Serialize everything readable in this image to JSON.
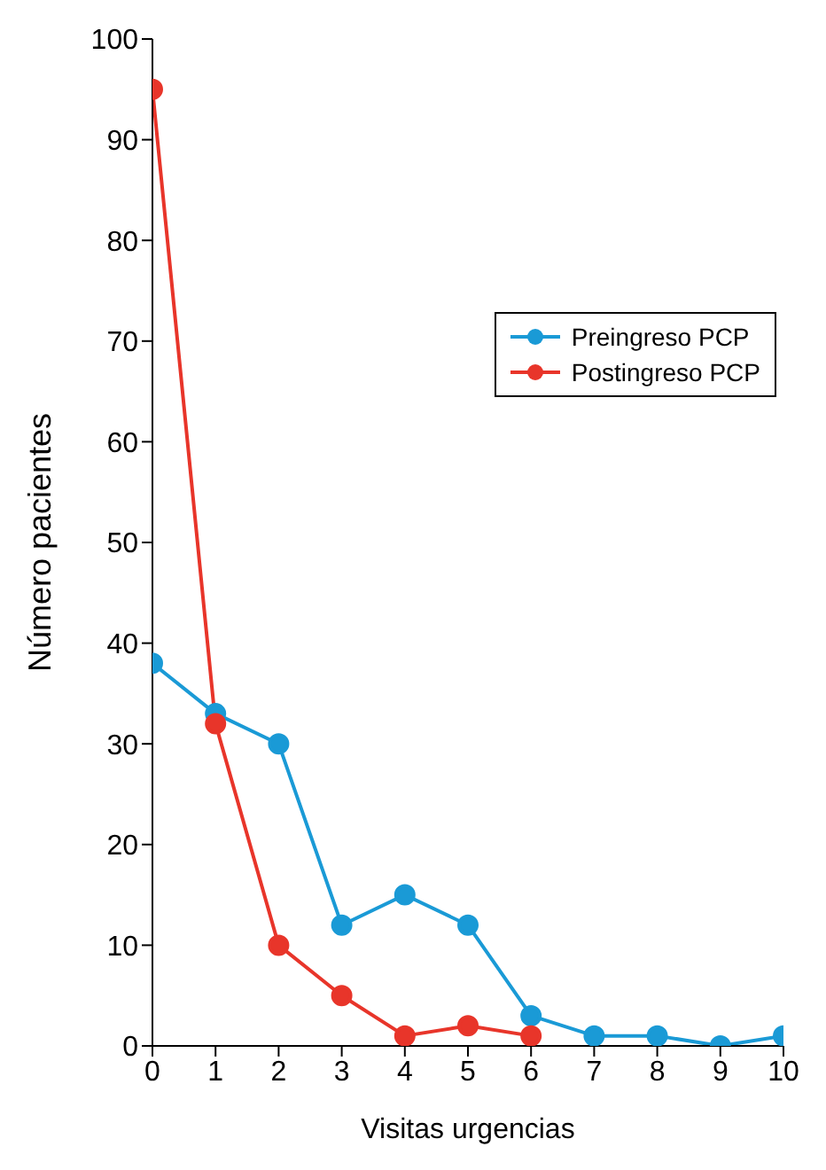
{
  "chart_data": {
    "type": "line",
    "xlabel": "Visitas urgencias",
    "ylabel": "Número pacientes",
    "x": [
      0,
      1,
      2,
      3,
      4,
      5,
      6,
      7,
      8,
      9,
      10
    ],
    "series": [
      {
        "name": "Preingreso PCP",
        "color": "#1a9ad6",
        "values": [
          38,
          33,
          30,
          12,
          15,
          12,
          3,
          1,
          1,
          0,
          1
        ]
      },
      {
        "name": "Postingreso PCP",
        "color": "#e8352a",
        "x": [
          0,
          1,
          2,
          3,
          4,
          5,
          6
        ],
        "values": [
          95,
          32,
          10,
          5,
          1,
          2,
          1
        ]
      }
    ],
    "xlim": [
      0,
      10
    ],
    "xticks": [
      0,
      1,
      2,
      3,
      4,
      5,
      6,
      7,
      8,
      9,
      10
    ],
    "ylim": [
      0,
      100
    ],
    "yticks": [
      0,
      10,
      20,
      30,
      40,
      50,
      60,
      70,
      80,
      90,
      100
    ],
    "grid": false,
    "legend": "top right",
    "marker": "circle",
    "line_style": "solid"
  }
}
